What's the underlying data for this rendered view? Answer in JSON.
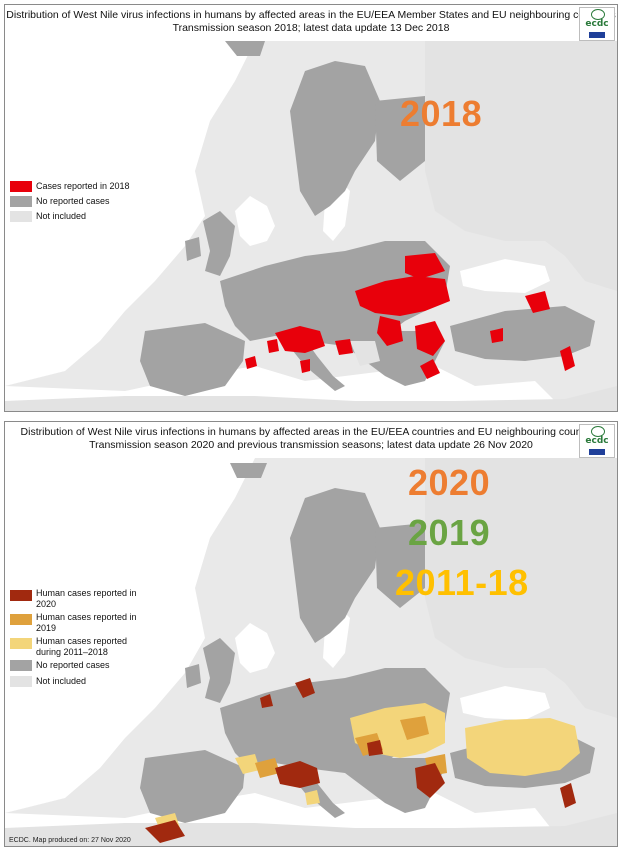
{
  "colors": {
    "sea": "#ffffff",
    "not_included": "#e3e3e3",
    "no_reported": "#a3a3a3",
    "cases_2018": "#e8000b",
    "cases_2020": "#a1290f",
    "cases_2019": "#dfa13c",
    "cases_2011_2018": "#f3d57a",
    "year_2018_label": "#ed7d31",
    "year_2020_label": "#ed7d31",
    "year_2019_label": "#6aa443",
    "year_2011_18_label": "#ffc000"
  },
  "map1": {
    "title_line1": "Distribution of West Nile virus infections in humans by affected areas in the EU/EEA Member States and EU neighbouring countries",
    "title_line2": "Transmission season 2018; latest data update 13 Dec 2018",
    "logo": "ecdc",
    "big_label": "2018",
    "legend": [
      {
        "label": "Cases reported in 2018",
        "color_key": "cases_2018"
      },
      {
        "label": "No reported cases",
        "color_key": "no_reported"
      },
      {
        "label": "Not included",
        "color_key": "not_included"
      }
    ]
  },
  "map2": {
    "title_line1": "Distribution of West Nile virus infections in humans by affected areas in the EU/EEA countries and EU neighbouring countries",
    "title_line2": "Transmission season 2020 and previous transmission seasons; latest data update 26 Nov 2020",
    "logo": "ecdc",
    "big_labels": [
      "2020",
      "2019",
      "2011-18"
    ],
    "legend": [
      {
        "label_line1": "Human cases reported in",
        "label_line2": "2020",
        "color_key": "cases_2020"
      },
      {
        "label_line1": "Human cases reported in",
        "label_line2": "2019",
        "color_key": "cases_2019"
      },
      {
        "label_line1": "Human cases reported",
        "label_line2": "during 2011–2018",
        "color_key": "cases_2011_2018"
      },
      {
        "label_line1": "No reported cases",
        "label_line2": "",
        "color_key": "no_reported"
      },
      {
        "label_line1": "Not included",
        "label_line2": "",
        "color_key": "not_included"
      }
    ],
    "footer": "ECDC. Map produced on: 27 Nov 2020"
  }
}
